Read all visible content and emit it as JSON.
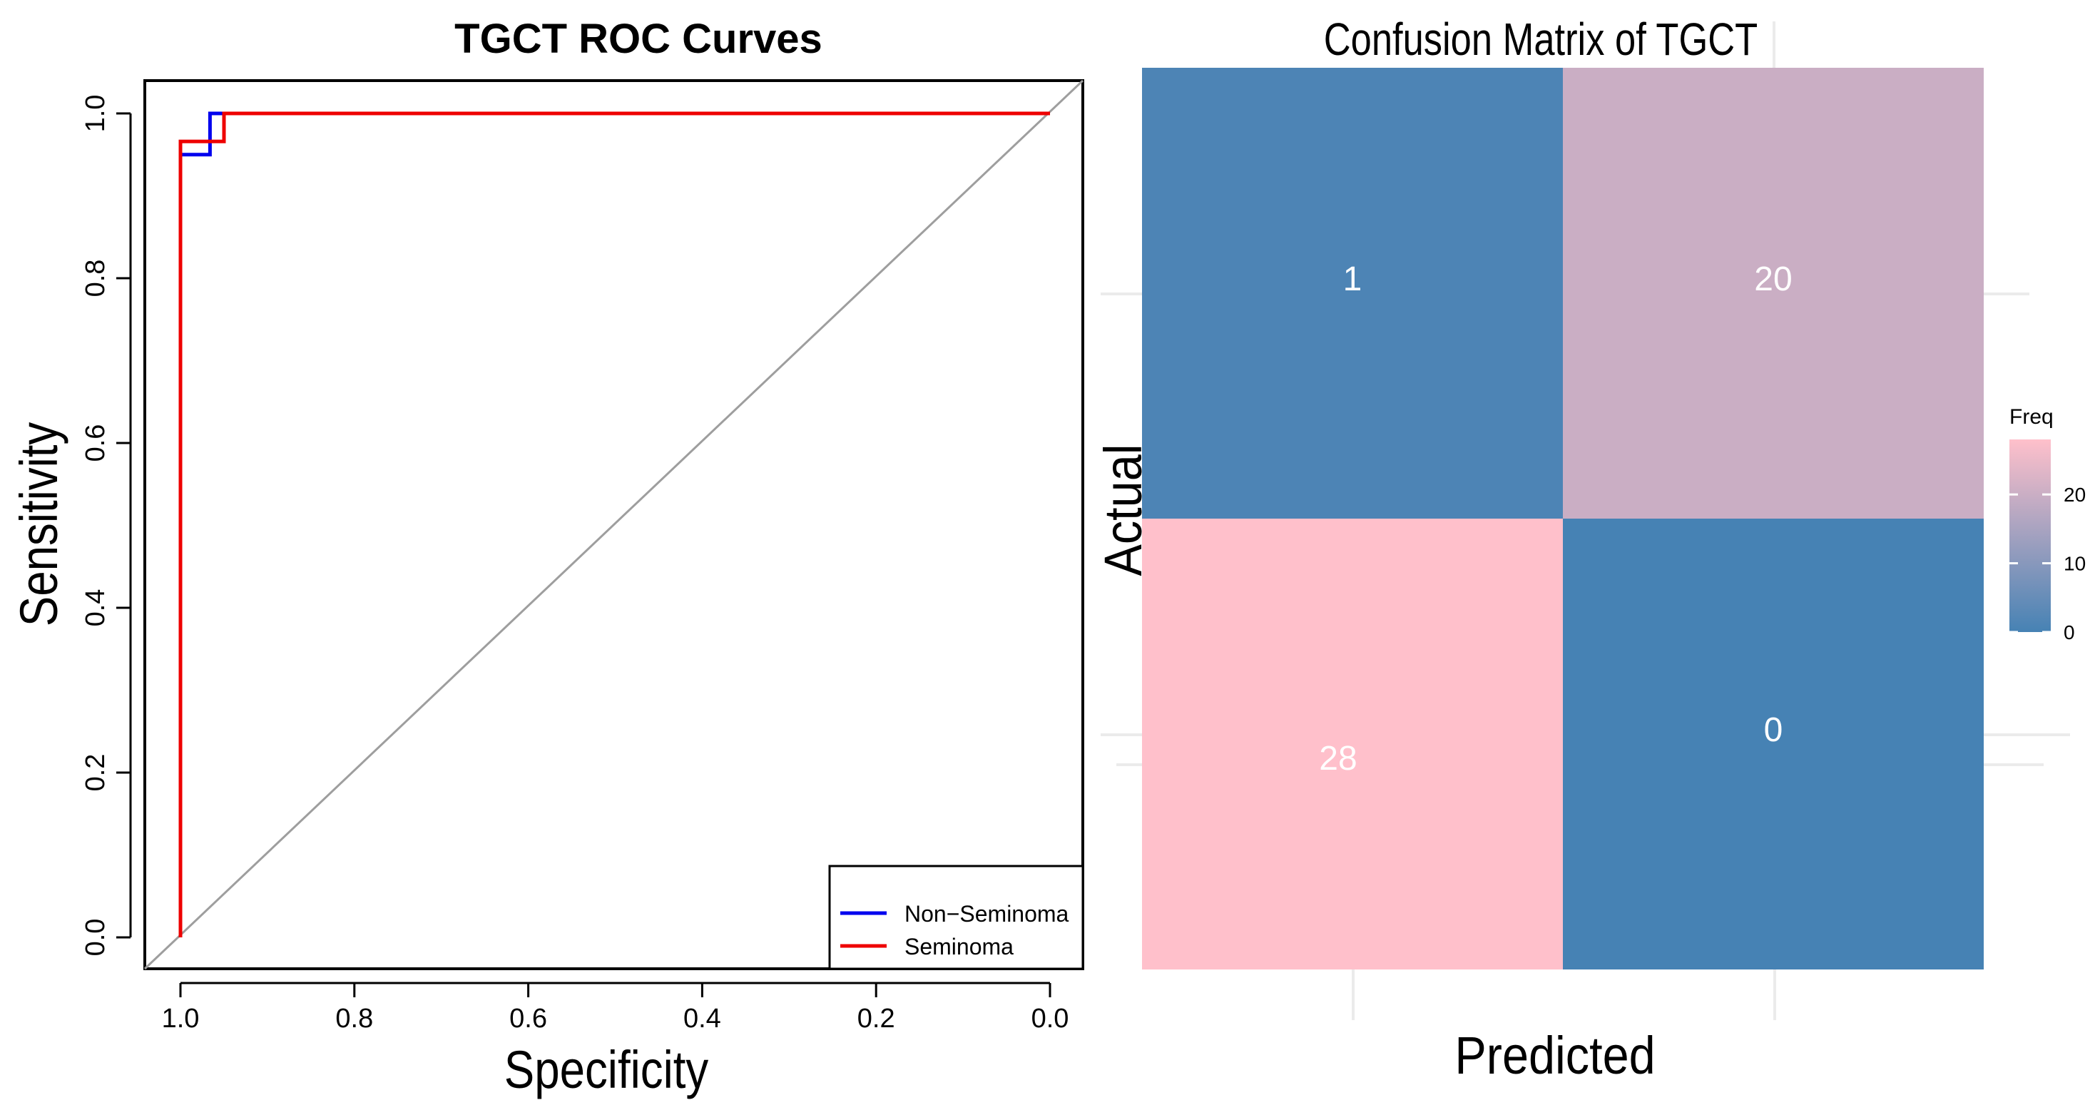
{
  "chart_data": [
    {
      "type": "line",
      "title": "TGCT ROC Curves",
      "xlabel": "Specificity",
      "ylabel": "Sensitivity",
      "xlim": [
        1.0,
        0.0
      ],
      "ylim": [
        0.0,
        1.0
      ],
      "x_ticks": [
        "1.0",
        "0.8",
        "0.6",
        "0.4",
        "0.2",
        "0.0"
      ],
      "y_ticks": [
        "0.0",
        "0.2",
        "0.4",
        "0.6",
        "0.8",
        "1.0"
      ],
      "reference_line": "diagonal",
      "legend_position": "bottom-right",
      "series": [
        {
          "name": "Non−Seminoma",
          "color": "#0000ee",
          "points": [
            [
              1.0,
              0.0
            ],
            [
              1.0,
              0.95
            ],
            [
              0.966,
              0.95
            ],
            [
              0.966,
              1.0
            ],
            [
              0.0,
              1.0
            ]
          ]
        },
        {
          "name": "Seminoma",
          "color": "#ee0000",
          "points": [
            [
              1.0,
              0.0
            ],
            [
              1.0,
              0.966
            ],
            [
              0.95,
              0.966
            ],
            [
              0.95,
              1.0
            ],
            [
              0.0,
              1.0
            ]
          ]
        }
      ]
    },
    {
      "type": "heatmap",
      "title": "Confusion Matrix of TGCT",
      "xlabel": "Predicted",
      "ylabel": "Actual",
      "legend_title": "Freq",
      "legend_ticks": [
        "0",
        "10",
        "20"
      ],
      "legend_range": [
        0,
        28
      ],
      "low_color": "#4682b4",
      "high_color": "#ffc0cb",
      "cells": [
        {
          "row": 0,
          "col": 0,
          "value": 1,
          "label": "1"
        },
        {
          "row": 0,
          "col": 1,
          "value": 20,
          "label": "20"
        },
        {
          "row": 1,
          "col": 0,
          "value": 28,
          "label": "28"
        },
        {
          "row": 1,
          "col": 1,
          "value": 0,
          "label": "0"
        }
      ]
    }
  ]
}
